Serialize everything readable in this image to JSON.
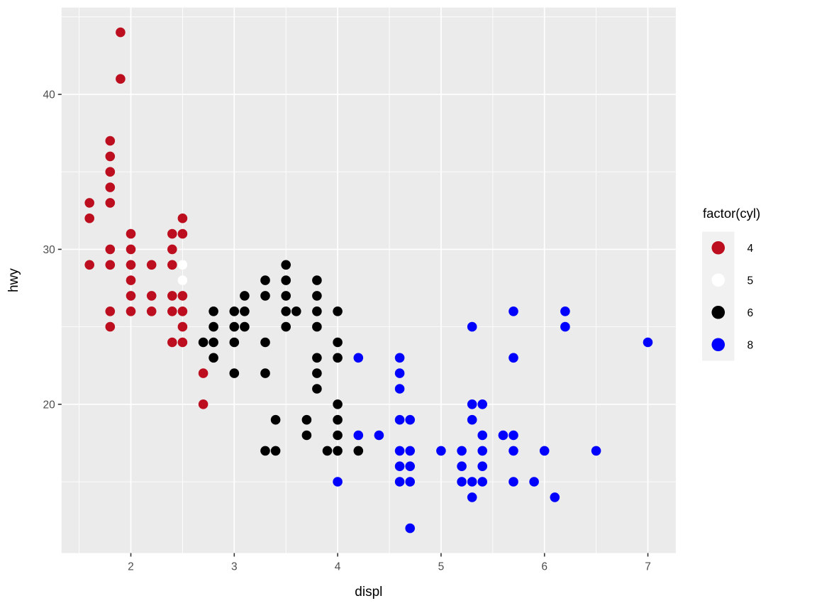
{
  "chart_data": {
    "type": "scatter",
    "title": "",
    "xlabel": "displ",
    "ylabel": "hwy",
    "xlim": [
      1.33,
      7.27
    ],
    "ylim": [
      10.4,
      45.6
    ],
    "x_major_ticks": [
      2,
      3,
      4,
      5,
      6,
      7
    ],
    "x_minor_ticks": [
      1.5,
      2.5,
      3.5,
      4.5,
      5.5,
      6.5
    ],
    "y_major_ticks": [
      20,
      30,
      40
    ],
    "y_minor_ticks": [
      15,
      25,
      35,
      45
    ],
    "grid": true,
    "legend_position": "right",
    "legend_title": "factor(cyl)",
    "series": [
      {
        "name": "4",
        "color": "#BC0E1E",
        "points": [
          [
            1.6,
            33
          ],
          [
            1.6,
            32
          ],
          [
            1.6,
            29
          ],
          [
            1.8,
            37
          ],
          [
            1.8,
            36
          ],
          [
            1.8,
            35
          ],
          [
            1.8,
            34
          ],
          [
            1.8,
            33
          ],
          [
            1.8,
            30
          ],
          [
            1.8,
            29
          ],
          [
            1.8,
            26
          ],
          [
            1.8,
            25
          ],
          [
            1.9,
            44
          ],
          [
            1.9,
            41
          ],
          [
            2.0,
            31
          ],
          [
            2.0,
            30
          ],
          [
            2.0,
            29
          ],
          [
            2.0,
            28
          ],
          [
            2.0,
            27
          ],
          [
            2.0,
            26
          ],
          [
            2.2,
            29
          ],
          [
            2.2,
            27
          ],
          [
            2.2,
            26
          ],
          [
            2.4,
            31
          ],
          [
            2.4,
            30
          ],
          [
            2.4,
            29
          ],
          [
            2.4,
            27
          ],
          [
            2.4,
            26
          ],
          [
            2.4,
            24
          ],
          [
            2.5,
            32
          ],
          [
            2.5,
            31
          ],
          [
            2.5,
            27
          ],
          [
            2.5,
            26
          ],
          [
            2.5,
            25
          ],
          [
            2.5,
            24
          ],
          [
            2.7,
            22
          ],
          [
            2.7,
            20
          ]
        ]
      },
      {
        "name": "5",
        "color": "#FFFFFF",
        "points": [
          [
            2.5,
            29
          ],
          [
            2.5,
            28
          ]
        ]
      },
      {
        "name": "6",
        "color": "#000000",
        "points": [
          [
            2.7,
            24
          ],
          [
            2.8,
            26
          ],
          [
            2.8,
            25
          ],
          [
            2.8,
            24
          ],
          [
            2.8,
            23
          ],
          [
            3.0,
            26
          ],
          [
            3.0,
            25
          ],
          [
            3.0,
            24
          ],
          [
            3.0,
            22
          ],
          [
            3.1,
            27
          ],
          [
            3.1,
            26
          ],
          [
            3.1,
            25
          ],
          [
            3.3,
            28
          ],
          [
            3.3,
            27
          ],
          [
            3.3,
            24
          ],
          [
            3.3,
            22
          ],
          [
            3.3,
            17
          ],
          [
            3.4,
            19
          ],
          [
            3.4,
            17
          ],
          [
            3.5,
            29
          ],
          [
            3.5,
            28
          ],
          [
            3.5,
            27
          ],
          [
            3.5,
            26
          ],
          [
            3.5,
            25
          ],
          [
            3.6,
            26
          ],
          [
            3.7,
            19
          ],
          [
            3.7,
            18
          ],
          [
            3.8,
            28
          ],
          [
            3.8,
            27
          ],
          [
            3.8,
            26
          ],
          [
            3.8,
            25
          ],
          [
            3.8,
            23
          ],
          [
            3.8,
            22
          ],
          [
            3.8,
            21
          ],
          [
            3.9,
            17
          ],
          [
            4.0,
            26
          ],
          [
            4.0,
            24
          ],
          [
            4.0,
            23
          ],
          [
            4.0,
            20
          ],
          [
            4.0,
            19
          ],
          [
            4.0,
            18
          ],
          [
            4.0,
            17
          ],
          [
            4.2,
            17
          ]
        ]
      },
      {
        "name": "8",
        "color": "#0000FF",
        "points": [
          [
            4.0,
            15
          ],
          [
            4.2,
            23
          ],
          [
            4.2,
            18
          ],
          [
            4.4,
            18
          ],
          [
            4.6,
            23
          ],
          [
            4.6,
            22
          ],
          [
            4.6,
            21
          ],
          [
            4.6,
            19
          ],
          [
            4.6,
            17
          ],
          [
            4.6,
            16
          ],
          [
            4.6,
            15
          ],
          [
            4.7,
            19
          ],
          [
            4.7,
            17
          ],
          [
            4.7,
            16
          ],
          [
            4.7,
            15
          ],
          [
            4.7,
            12
          ],
          [
            5.0,
            17
          ],
          [
            5.2,
            17
          ],
          [
            5.2,
            16
          ],
          [
            5.2,
            15
          ],
          [
            5.3,
            25
          ],
          [
            5.3,
            20
          ],
          [
            5.3,
            19
          ],
          [
            5.3,
            15
          ],
          [
            5.3,
            14
          ],
          [
            5.4,
            20
          ],
          [
            5.4,
            18
          ],
          [
            5.4,
            17
          ],
          [
            5.4,
            16
          ],
          [
            5.4,
            15
          ],
          [
            5.6,
            18
          ],
          [
            5.7,
            26
          ],
          [
            5.7,
            23
          ],
          [
            5.7,
            18
          ],
          [
            5.7,
            17
          ],
          [
            5.7,
            15
          ],
          [
            5.9,
            15
          ],
          [
            6.0,
            17
          ],
          [
            6.1,
            14
          ],
          [
            6.2,
            26
          ],
          [
            6.2,
            25
          ],
          [
            6.5,
            17
          ],
          [
            7.0,
            24
          ]
        ]
      }
    ]
  },
  "theme": {
    "plot_bg": "#FFFFFF",
    "panel_bg": "#EBEBEB",
    "grid_color": "#FFFFFF",
    "tick_mark_color": "#333333",
    "tick_label_color": "#4D4D4D",
    "axis_title_color": "#000000",
    "legend_title_color": "#000000",
    "legend_label_color": "#000000",
    "legend_key_bg": "#F1F1F1"
  }
}
